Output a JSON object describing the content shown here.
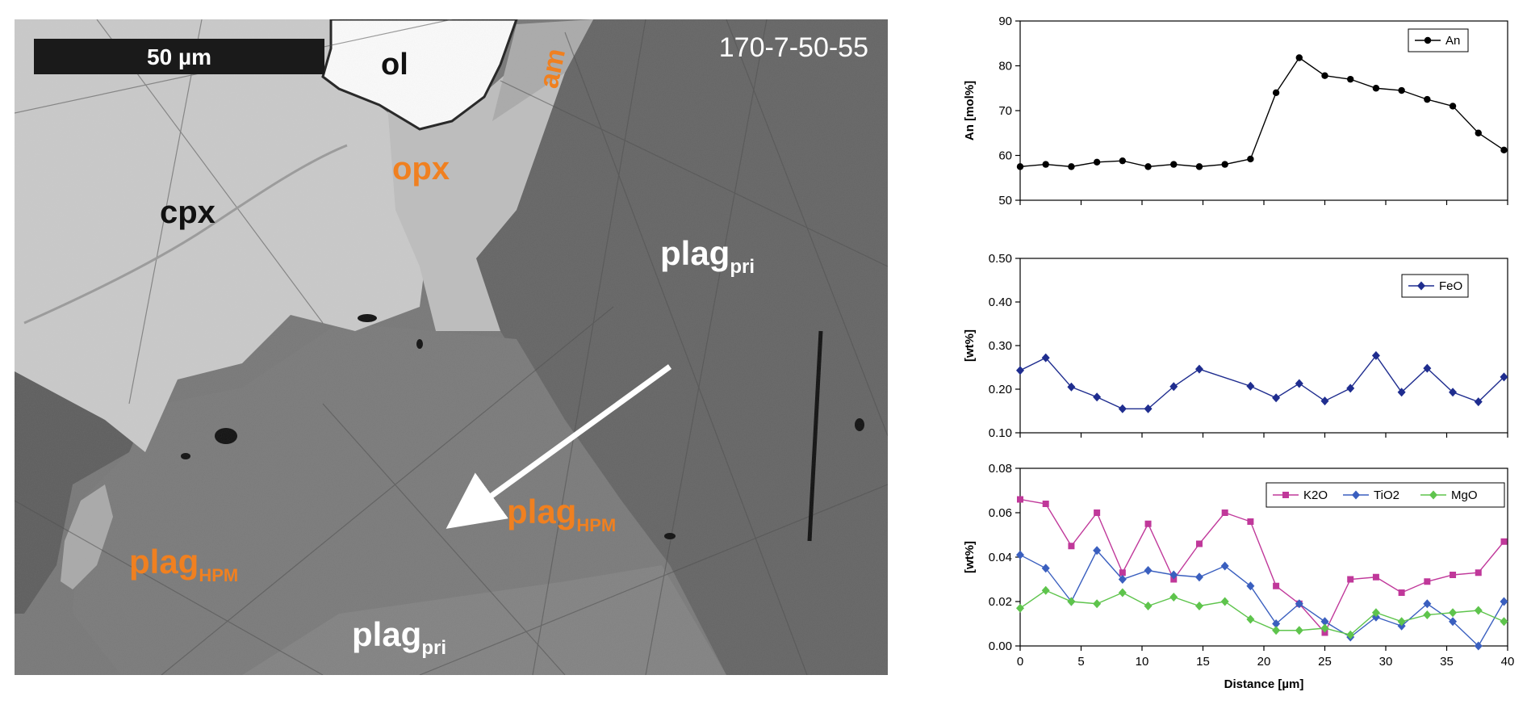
{
  "micrograph": {
    "scale_bar_label": "50 µm",
    "sample_id": "170-7-50-55",
    "colors": {
      "orange": "#f08020",
      "white": "#ffffff",
      "black": "#111111"
    },
    "labels": {
      "ol": "ol",
      "am": "am",
      "opx": "opx",
      "cpx": "cpx",
      "plag_pri_upper": {
        "base": "plag",
        "sub": "pri"
      },
      "plag_hpm_center": {
        "base": "plag",
        "sub": "HPM"
      },
      "plag_hpm_left": {
        "base": "plag",
        "sub": "HPM"
      },
      "plag_pri_lower": {
        "base": "plag",
        "sub": "pri"
      }
    }
  },
  "chart_data": [
    {
      "type": "line",
      "ylabel": "An [mol%]",
      "xlabel": "",
      "xlim": [
        0,
        40
      ],
      "ylim": [
        50,
        90
      ],
      "yticks": [
        50,
        60,
        70,
        80,
        90
      ],
      "ytick_labels": [
        "50",
        "60",
        "70",
        "80",
        "90"
      ],
      "legend_position": "top-right",
      "series": [
        {
          "name": "An",
          "color": "#000000",
          "marker": "circle",
          "x": [
            0,
            2.1,
            4.2,
            6.3,
            8.4,
            10.5,
            12.6,
            14.7,
            16.8,
            18.9,
            21.0,
            22.9,
            25.0,
            27.1,
            29.2,
            31.3,
            33.4,
            35.5,
            37.6,
            39.7
          ],
          "y": [
            57.5,
            58,
            57.5,
            58.5,
            58.8,
            57.5,
            58,
            57.5,
            58,
            59.2,
            74,
            81.8,
            77.8,
            77,
            75,
            74.5,
            72.5,
            71,
            65,
            61.2
          ]
        }
      ]
    },
    {
      "type": "line",
      "ylabel": "[wt%]",
      "xlabel": "",
      "xlim": [
        0,
        40
      ],
      "ylim": [
        0.1,
        0.5
      ],
      "yticks": [
        0.1,
        0.2,
        0.3,
        0.4,
        0.5
      ],
      "ytick_labels": [
        "0.10",
        "0.20",
        "0.30",
        "0.40",
        "0.50"
      ],
      "legend_position": "top-right",
      "series": [
        {
          "name": "FeO",
          "color": "#1f2d8f",
          "marker": "diamond",
          "x": [
            0,
            2.1,
            4.2,
            6.3,
            8.4,
            10.5,
            12.6,
            14.7,
            18.9,
            21.0,
            22.9,
            25.0,
            27.1,
            29.2,
            31.3,
            33.4,
            35.5,
            37.6,
            39.7
          ],
          "y": [
            0.243,
            0.272,
            0.205,
            0.182,
            0.155,
            0.155,
            0.206,
            0.246,
            0.207,
            0.18,
            0.213,
            0.173,
            0.202,
            0.277,
            0.193,
            0.248,
            0.193,
            0.171,
            0.228
          ]
        }
      ]
    },
    {
      "type": "line",
      "ylabel": "[wt%]",
      "xlabel": "Distance [µm]",
      "xlim": [
        0,
        40
      ],
      "ylim": [
        0,
        0.08
      ],
      "xticks": [
        0,
        5,
        10,
        15,
        20,
        25,
        30,
        35,
        40
      ],
      "xtick_labels": [
        "0",
        "5",
        "10",
        "15",
        "20",
        "25",
        "30",
        "35",
        "40"
      ],
      "yticks": [
        0,
        0.02,
        0.04,
        0.06,
        0.08
      ],
      "ytick_labels": [
        "0.00",
        "0.02",
        "0.04",
        "0.06",
        "0.08"
      ],
      "legend_position": "top-right",
      "series": [
        {
          "name": "K2O",
          "color": "#c0389a",
          "marker": "square",
          "x": [
            0,
            2.1,
            4.2,
            6.3,
            8.4,
            10.5,
            12.6,
            14.7,
            16.8,
            18.9,
            21.0,
            22.9,
            25.0,
            27.1,
            29.2,
            31.3,
            33.4,
            35.5,
            37.6,
            39.7
          ],
          "y": [
            0.066,
            0.064,
            0.045,
            0.06,
            0.033,
            0.055,
            0.03,
            0.046,
            0.06,
            0.056,
            0.027,
            0.019,
            0.006,
            0.03,
            0.031,
            0.024,
            0.029,
            0.032,
            0.033,
            0.047
          ]
        },
        {
          "name": "TiO2",
          "color": "#3a5fbf",
          "marker": "diamond",
          "x": [
            0,
            2.1,
            4.2,
            6.3,
            8.4,
            10.5,
            12.6,
            14.7,
            16.8,
            18.9,
            21.0,
            22.9,
            25.0,
            27.1,
            29.2,
            31.3,
            33.4,
            35.5,
            37.6,
            39.7
          ],
          "y": [
            0.041,
            0.035,
            0.02,
            0.043,
            0.03,
            0.034,
            0.032,
            0.031,
            0.036,
            0.027,
            0.01,
            0.019,
            0.011,
            0.004,
            0.013,
            0.009,
            0.019,
            0.011,
            0,
            0.02
          ]
        },
        {
          "name": "MgO",
          "color": "#5ec44c",
          "marker": "diamond",
          "x": [
            0,
            2.1,
            4.2,
            6.3,
            8.4,
            10.5,
            12.6,
            14.7,
            16.8,
            18.9,
            21.0,
            22.9,
            25.0,
            27.1,
            29.2,
            31.3,
            33.4,
            35.5,
            37.6,
            39.7
          ],
          "y": [
            0.017,
            0.025,
            0.02,
            0.019,
            0.024,
            0.018,
            0.022,
            0.018,
            0.02,
            0.012,
            0.007,
            0.007,
            0.008,
            0.005,
            0.015,
            0.011,
            0.014,
            0.015,
            0.016,
            0.011
          ]
        }
      ]
    }
  ]
}
